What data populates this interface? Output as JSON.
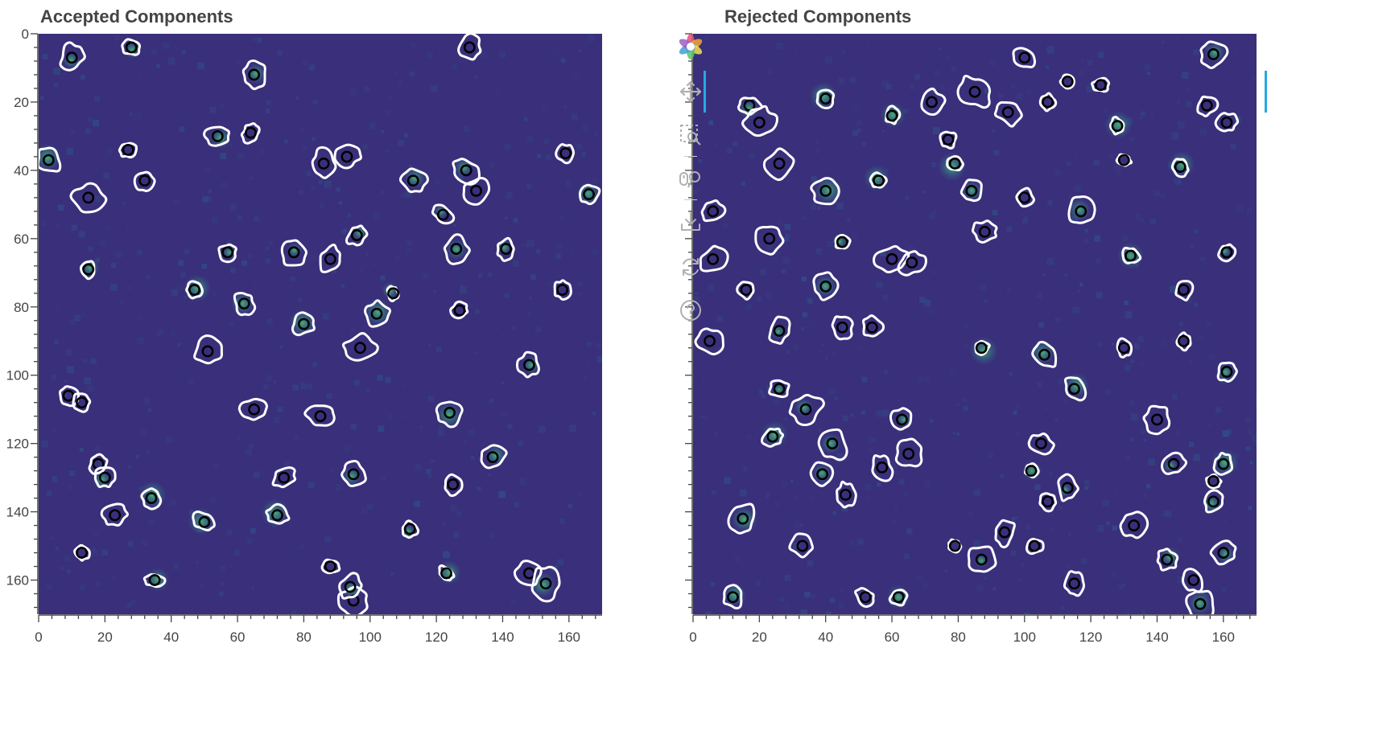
{
  "panels": [
    {
      "title": "Accepted Components",
      "chart_data": {
        "type": "heatmap",
        "title": "Accepted Components",
        "xlabel": "",
        "ylabel": "",
        "xlim": [
          0,
          170
        ],
        "ylim": [
          170,
          0
        ],
        "y_axis_inverted": true,
        "x_ticks": [
          0,
          20,
          40,
          60,
          80,
          100,
          120,
          140,
          160
        ],
        "y_ticks": [
          0,
          20,
          40,
          60,
          80,
          100,
          120,
          140,
          160
        ],
        "colormap": "viridis",
        "background_color": "#3a2f7a",
        "contour_color": "#ffffff",
        "center_marker_color": "#000000",
        "components": [
          {
            "x": 10,
            "y": 7
          },
          {
            "x": 28,
            "y": 4
          },
          {
            "x": 65,
            "y": 12
          },
          {
            "x": 130,
            "y": 4
          },
          {
            "x": 54,
            "y": 30
          },
          {
            "x": 64,
            "y": 29
          },
          {
            "x": 3,
            "y": 37
          },
          {
            "x": 27,
            "y": 34
          },
          {
            "x": 32,
            "y": 43
          },
          {
            "x": 86,
            "y": 38
          },
          {
            "x": 93,
            "y": 36
          },
          {
            "x": 159,
            "y": 35
          },
          {
            "x": 15,
            "y": 48
          },
          {
            "x": 113,
            "y": 43
          },
          {
            "x": 129,
            "y": 40
          },
          {
            "x": 132,
            "y": 46
          },
          {
            "x": 166,
            "y": 47
          },
          {
            "x": 122,
            "y": 53
          },
          {
            "x": 96,
            "y": 59
          },
          {
            "x": 126,
            "y": 63
          },
          {
            "x": 141,
            "y": 63
          },
          {
            "x": 57,
            "y": 64
          },
          {
            "x": 77,
            "y": 64
          },
          {
            "x": 88,
            "y": 66
          },
          {
            "x": 15,
            "y": 69
          },
          {
            "x": 47,
            "y": 75
          },
          {
            "x": 62,
            "y": 79
          },
          {
            "x": 107,
            "y": 76
          },
          {
            "x": 158,
            "y": 75
          },
          {
            "x": 102,
            "y": 82
          },
          {
            "x": 127,
            "y": 81
          },
          {
            "x": 80,
            "y": 85
          },
          {
            "x": 97,
            "y": 92
          },
          {
            "x": 51,
            "y": 93
          },
          {
            "x": 148,
            "y": 97
          },
          {
            "x": 9,
            "y": 106
          },
          {
            "x": 13,
            "y": 108
          },
          {
            "x": 65,
            "y": 110
          },
          {
            "x": 85,
            "y": 112
          },
          {
            "x": 124,
            "y": 111
          },
          {
            "x": 18,
            "y": 126
          },
          {
            "x": 20,
            "y": 130
          },
          {
            "x": 137,
            "y": 124
          },
          {
            "x": 95,
            "y": 129
          },
          {
            "x": 74,
            "y": 130
          },
          {
            "x": 125,
            "y": 132
          },
          {
            "x": 34,
            "y": 136
          },
          {
            "x": 72,
            "y": 141
          },
          {
            "x": 23,
            "y": 141
          },
          {
            "x": 50,
            "y": 143
          },
          {
            "x": 112,
            "y": 145
          },
          {
            "x": 13,
            "y": 152
          },
          {
            "x": 88,
            "y": 156
          },
          {
            "x": 35,
            "y": 160
          },
          {
            "x": 123,
            "y": 158
          },
          {
            "x": 148,
            "y": 158
          },
          {
            "x": 153,
            "y": 161
          },
          {
            "x": 95,
            "y": 166
          },
          {
            "x": 94,
            "y": 162
          }
        ]
      }
    },
    {
      "title": "Rejected Components",
      "chart_data": {
        "type": "heatmap",
        "title": "Rejected Components",
        "xlabel": "",
        "ylabel": "",
        "xlim": [
          0,
          170
        ],
        "ylim": [
          170,
          0
        ],
        "y_axis_inverted": true,
        "x_ticks": [
          0,
          20,
          40,
          60,
          80,
          100,
          120,
          140,
          160
        ],
        "y_ticks": [
          0,
          20,
          40,
          60,
          80,
          100,
          120,
          140,
          160
        ],
        "colormap": "viridis",
        "background_color": "#3a2f7a",
        "contour_color": "#ffffff",
        "center_marker_color": "#000000",
        "components": [
          {
            "x": 17,
            "y": 21
          },
          {
            "x": 40,
            "y": 19
          },
          {
            "x": 60,
            "y": 24
          },
          {
            "x": 72,
            "y": 20
          },
          {
            "x": 85,
            "y": 17
          },
          {
            "x": 100,
            "y": 7
          },
          {
            "x": 107,
            "y": 20
          },
          {
            "x": 113,
            "y": 14
          },
          {
            "x": 123,
            "y": 15
          },
          {
            "x": 157,
            "y": 6
          },
          {
            "x": 155,
            "y": 21
          },
          {
            "x": 161,
            "y": 26
          },
          {
            "x": 20,
            "y": 26
          },
          {
            "x": 128,
            "y": 27
          },
          {
            "x": 77,
            "y": 31
          },
          {
            "x": 79,
            "y": 38
          },
          {
            "x": 26,
            "y": 38
          },
          {
            "x": 95,
            "y": 23
          },
          {
            "x": 130,
            "y": 37
          },
          {
            "x": 147,
            "y": 39
          },
          {
            "x": 40,
            "y": 46
          },
          {
            "x": 56,
            "y": 43
          },
          {
            "x": 84,
            "y": 46
          },
          {
            "x": 100,
            "y": 48
          },
          {
            "x": 117,
            "y": 52
          },
          {
            "x": 6,
            "y": 52
          },
          {
            "x": 23,
            "y": 60
          },
          {
            "x": 45,
            "y": 61
          },
          {
            "x": 60,
            "y": 66
          },
          {
            "x": 66,
            "y": 67
          },
          {
            "x": 88,
            "y": 58
          },
          {
            "x": 132,
            "y": 65
          },
          {
            "x": 161,
            "y": 64
          },
          {
            "x": 6,
            "y": 66
          },
          {
            "x": 16,
            "y": 75
          },
          {
            "x": 40,
            "y": 74
          },
          {
            "x": 148,
            "y": 75
          },
          {
            "x": 5,
            "y": 90
          },
          {
            "x": 26,
            "y": 87
          },
          {
            "x": 45,
            "y": 86
          },
          {
            "x": 54,
            "y": 86
          },
          {
            "x": 87,
            "y": 92
          },
          {
            "x": 106,
            "y": 94
          },
          {
            "x": 130,
            "y": 92
          },
          {
            "x": 148,
            "y": 90
          },
          {
            "x": 161,
            "y": 99
          },
          {
            "x": 115,
            "y": 104
          },
          {
            "x": 26,
            "y": 104
          },
          {
            "x": 34,
            "y": 110
          },
          {
            "x": 63,
            "y": 113
          },
          {
            "x": 24,
            "y": 118
          },
          {
            "x": 42,
            "y": 120
          },
          {
            "x": 65,
            "y": 123
          },
          {
            "x": 140,
            "y": 113
          },
          {
            "x": 105,
            "y": 120
          },
          {
            "x": 145,
            "y": 126
          },
          {
            "x": 160,
            "y": 126
          },
          {
            "x": 39,
            "y": 129
          },
          {
            "x": 57,
            "y": 127
          },
          {
            "x": 102,
            "y": 128
          },
          {
            "x": 113,
            "y": 133
          },
          {
            "x": 157,
            "y": 131
          },
          {
            "x": 46,
            "y": 135
          },
          {
            "x": 107,
            "y": 137
          },
          {
            "x": 157,
            "y": 137
          },
          {
            "x": 15,
            "y": 142
          },
          {
            "x": 133,
            "y": 144
          },
          {
            "x": 33,
            "y": 150
          },
          {
            "x": 79,
            "y": 150
          },
          {
            "x": 94,
            "y": 146
          },
          {
            "x": 87,
            "y": 154
          },
          {
            "x": 103,
            "y": 150
          },
          {
            "x": 143,
            "y": 154
          },
          {
            "x": 160,
            "y": 152
          },
          {
            "x": 12,
            "y": 165
          },
          {
            "x": 52,
            "y": 165
          },
          {
            "x": 62,
            "y": 165
          },
          {
            "x": 115,
            "y": 161
          },
          {
            "x": 151,
            "y": 160
          },
          {
            "x": 153,
            "y": 167
          }
        ]
      }
    }
  ],
  "toolbar": {
    "tools": [
      {
        "icon": "bokeh-logo-icon",
        "active": false
      },
      {
        "icon": "pan-icon",
        "active": true
      },
      {
        "icon": "box-zoom-icon",
        "active": false
      },
      {
        "icon": "wheel-zoom-icon",
        "active": false
      },
      {
        "icon": "save-icon",
        "active": false
      },
      {
        "icon": "reset-icon",
        "active": false
      },
      {
        "icon": "help-icon",
        "active": false
      }
    ],
    "accent_color": "#26aae1"
  }
}
